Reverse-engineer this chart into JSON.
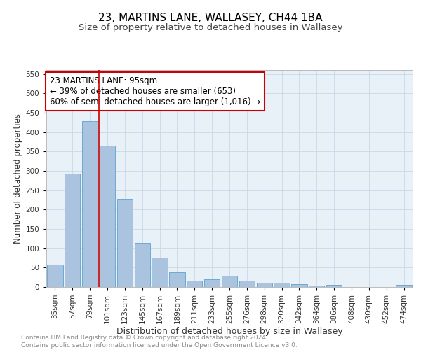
{
  "title1": "23, MARTINS LANE, WALLASEY, CH44 1BA",
  "title2": "Size of property relative to detached houses in Wallasey",
  "xlabel": "Distribution of detached houses by size in Wallasey",
  "ylabel": "Number of detached properties",
  "categories": [
    "35sqm",
    "57sqm",
    "79sqm",
    "101sqm",
    "123sqm",
    "145sqm",
    "167sqm",
    "189sqm",
    "211sqm",
    "233sqm",
    "255sqm",
    "276sqm",
    "298sqm",
    "320sqm",
    "342sqm",
    "364sqm",
    "386sqm",
    "408sqm",
    "430sqm",
    "452sqm",
    "474sqm"
  ],
  "values": [
    57,
    293,
    428,
    365,
    228,
    113,
    76,
    38,
    17,
    20,
    29,
    16,
    11,
    10,
    8,
    3,
    5,
    0,
    0,
    0,
    5
  ],
  "bar_color": "#aac4e0",
  "bar_edge_color": "#6aaad4",
  "vline_color": "#cc0000",
  "vline_x": 2.5,
  "annotation_text": "23 MARTINS LANE: 95sqm\n← 39% of detached houses are smaller (653)\n60% of semi-detached houses are larger (1,016) →",
  "annotation_box_color": "#ffffff",
  "annotation_box_edge": "#cc0000",
  "ylim": [
    0,
    560
  ],
  "yticks": [
    0,
    50,
    100,
    150,
    200,
    250,
    300,
    350,
    400,
    450,
    500,
    550
  ],
  "grid_color": "#c8d8e8",
  "bg_color": "#e8f0f8",
  "footer": "Contains HM Land Registry data © Crown copyright and database right 2024.\nContains public sector information licensed under the Open Government Licence v3.0.",
  "title1_fontsize": 11,
  "title2_fontsize": 9.5,
  "xlabel_fontsize": 9,
  "ylabel_fontsize": 8.5,
  "tick_fontsize": 7.5,
  "annotation_fontsize": 8.5,
  "footer_fontsize": 6.5
}
